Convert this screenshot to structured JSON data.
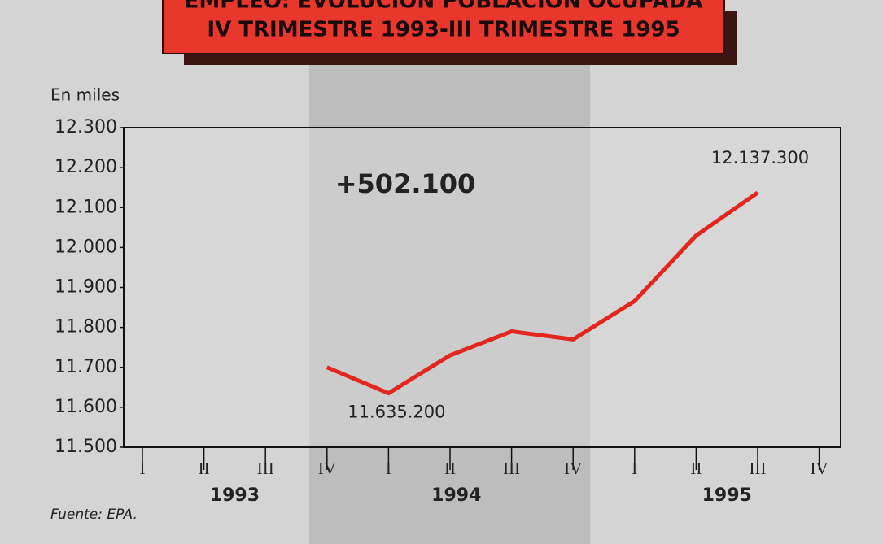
{
  "chart_data": {
    "type": "line",
    "title": "EMPLEO: EVOLUCIÓN POBLACIÓN OCUPADA",
    "subtitle": "IV TRIMESTRE 1993-III TRIMESTRE 1995",
    "y_label": "En miles",
    "annotation": "+502.100",
    "source": "Fuente: EPA.",
    "categories": [
      "I",
      "II",
      "III",
      "IV",
      "I",
      "II",
      "III",
      "IV",
      "I",
      "II",
      "III",
      "IV"
    ],
    "years": [
      "1993",
      "1994",
      "1995"
    ],
    "values": [
      null,
      null,
      null,
      11700,
      11635.2,
      11730,
      11790,
      11770,
      11866,
      12030,
      12137.3,
      null
    ],
    "value_labels": [
      null,
      null,
      null,
      null,
      "11.635.200",
      null,
      null,
      null,
      null,
      null,
      "12.137.300",
      null
    ],
    "color": "#e3261e",
    "ylim": [
      11500,
      12300
    ],
    "yticks": [
      {
        "value": 11500,
        "label": "11.500"
      },
      {
        "value": 11600,
        "label": "11.600"
      },
      {
        "value": 11700,
        "label": "11.700"
      },
      {
        "value": 11800,
        "label": "11.800"
      },
      {
        "value": 11900,
        "label": "11.900"
      },
      {
        "value": 12000,
        "label": "12.000"
      },
      {
        "value": 12100,
        "label": "12.100"
      },
      {
        "value": 12200,
        "label": "12.200"
      },
      {
        "value": 12300,
        "label": "12.300"
      }
    ]
  }
}
